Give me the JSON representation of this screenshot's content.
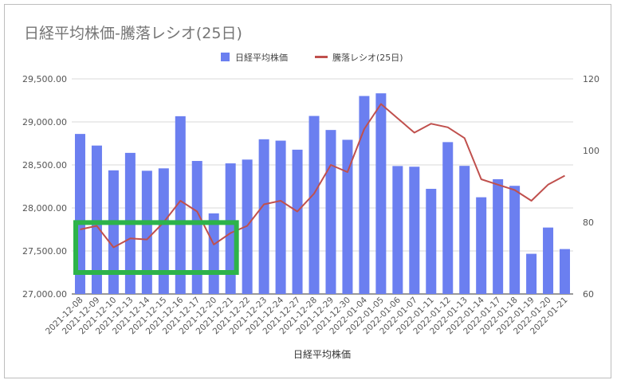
{
  "chart_data": {
    "type": "bar+line",
    "title": "日経平均株価-騰落レシオ(25日)",
    "xlabel": "日経平均株価",
    "legend_position": "top",
    "grid": true,
    "categories": [
      "2021-12-08",
      "2021-12-09",
      "2021-12-10",
      "2021-12-13",
      "2021-12-14",
      "2021-12-15",
      "2021-12-16",
      "2021-12-17",
      "2021-12-20",
      "2021-12-21",
      "2021-12-22",
      "2021-12-23",
      "2021-12-24",
      "2021-12-27",
      "2021-12-28",
      "2021-12-29",
      "2021-12-30",
      "2022-01-04",
      "2022-01-05",
      "2022-01-06",
      "2022-01-07",
      "2022-01-11",
      "2022-01-12",
      "2022-01-13",
      "2022-01-14",
      "2022-01-17",
      "2022-01-18",
      "2022-01-19",
      "2022-01-20",
      "2022-01-21"
    ],
    "series": [
      {
        "name": "日経平均株価",
        "type": "bar",
        "axis": "left",
        "color": "#6b7ff0",
        "values": [
          28860,
          28725,
          28437,
          28640,
          28432,
          28460,
          29066,
          28546,
          27937,
          28518,
          28562,
          28798,
          28782,
          28677,
          29069,
          28906,
          28792,
          29301,
          29332,
          28487,
          28479,
          28222,
          28765,
          28489,
          28124,
          28334,
          28257,
          27467,
          27772,
          27522
        ]
      },
      {
        "name": "騰落レシオ(25日)",
        "type": "line",
        "axis": "right",
        "color": "#c0504d",
        "values": [
          78,
          79,
          73,
          75.5,
          75.2,
          80,
          86,
          83,
          73.8,
          77,
          79,
          85,
          86,
          83,
          88,
          96,
          94,
          106,
          113,
          109,
          105,
          107.5,
          106.5,
          103.5,
          92,
          90.5,
          89,
          86,
          90.5,
          93
        ]
      }
    ],
    "y_left": {
      "min": 27000,
      "max": 29500,
      "ticks": [
        "27,000.00",
        "27,500.00",
        "28,000.00",
        "28,500.00",
        "29,000.00",
        "29,500.00"
      ]
    },
    "y_right": {
      "min": 60,
      "max": 120,
      "ticks": [
        "60",
        "80",
        "100",
        "120"
      ]
    },
    "annotation": {
      "shape": "rectangle",
      "color": "#2db34a",
      "from_category": "2021-12-08",
      "to_category": "2021-12-21",
      "y_from": 27250,
      "y_to": 27830
    }
  }
}
